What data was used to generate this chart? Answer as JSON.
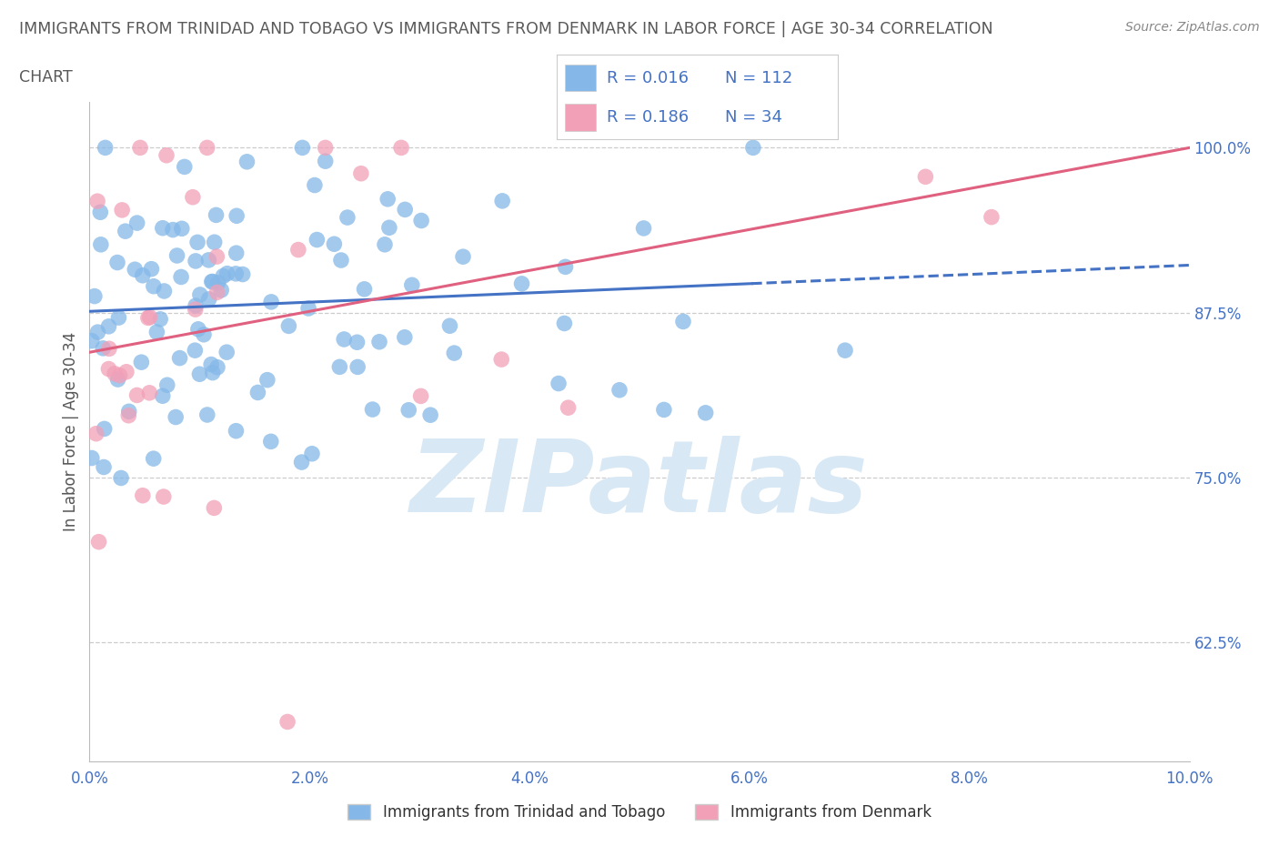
{
  "title_line1": "IMMIGRANTS FROM TRINIDAD AND TOBAGO VS IMMIGRANTS FROM DENMARK IN LABOR FORCE | AGE 30-34 CORRELATION",
  "title_line2": "CHART",
  "source_text": "Source: ZipAtlas.com",
  "ylabel": "In Labor Force | Age 30-34",
  "xlim": [
    0.0,
    0.1
  ],
  "ylim": [
    0.535,
    1.035
  ],
  "xtick_labels": [
    "0.0%",
    "2.0%",
    "4.0%",
    "6.0%",
    "8.0%",
    "10.0%"
  ],
  "xtick_vals": [
    0.0,
    0.02,
    0.04,
    0.06,
    0.08,
    0.1
  ],
  "ytick_labels": [
    "62.5%",
    "75.0%",
    "87.5%",
    "100.0%"
  ],
  "ytick_vals": [
    0.625,
    0.75,
    0.875,
    1.0
  ],
  "blue_color": "#85B8E8",
  "pink_color": "#F2A0B8",
  "blue_line_color": "#4472C4",
  "pink_line_color": "#E06080",
  "watermark_color": "#D8E8F5",
  "legend_R_blue": "R = 0.016",
  "legend_N_blue": "N = 112",
  "legend_R_pink": "R = 0.186",
  "legend_N_pink": "N = 34",
  "blue_trend_intercept": 0.876,
  "blue_trend_slope": 0.35,
  "pink_trend_intercept": 0.845,
  "pink_trend_slope": 1.55,
  "grid_color": "#CCCCCC",
  "bg_color": "#FFFFFF",
  "axis_color": "#BBBBBB",
  "label_color": "#4472C4",
  "title_color": "#595959",
  "legend_text_color": "#4472C4",
  "bottom_legend_color": "#333333"
}
